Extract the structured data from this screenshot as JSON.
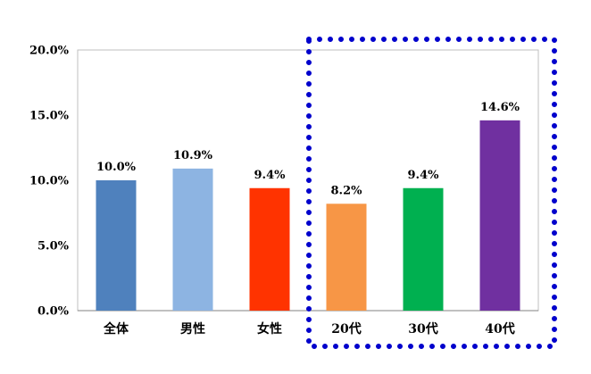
{
  "chart_data": {
    "type": "bar",
    "title": "",
    "xlabel": "",
    "ylabel": "",
    "ylim": [
      0,
      20
    ],
    "yticks": [
      0,
      5,
      10,
      15,
      20
    ],
    "ytick_labels": [
      "0.0%",
      "5.0%",
      "10.0%",
      "15.0%",
      "20.0%"
    ],
    "categories": [
      "全体",
      "男性",
      "女性",
      "20代",
      "30代",
      "40代"
    ],
    "values": [
      10.0,
      10.9,
      9.4,
      8.2,
      9.4,
      14.6
    ],
    "data_labels": [
      "10.0%",
      "10.9%",
      "9.4%",
      "8.2%",
      "9.4%",
      "14.6%"
    ],
    "colors": [
      "#4F81BD",
      "#8DB4E2",
      "#FF3300",
      "#F79646",
      "#00B050",
      "#7030A0"
    ],
    "grid": false,
    "legend": "none",
    "highlight_box": {
      "covers": [
        "20代",
        "30代",
        "40代"
      ],
      "color": "#0000CC",
      "style": "dotted"
    }
  }
}
